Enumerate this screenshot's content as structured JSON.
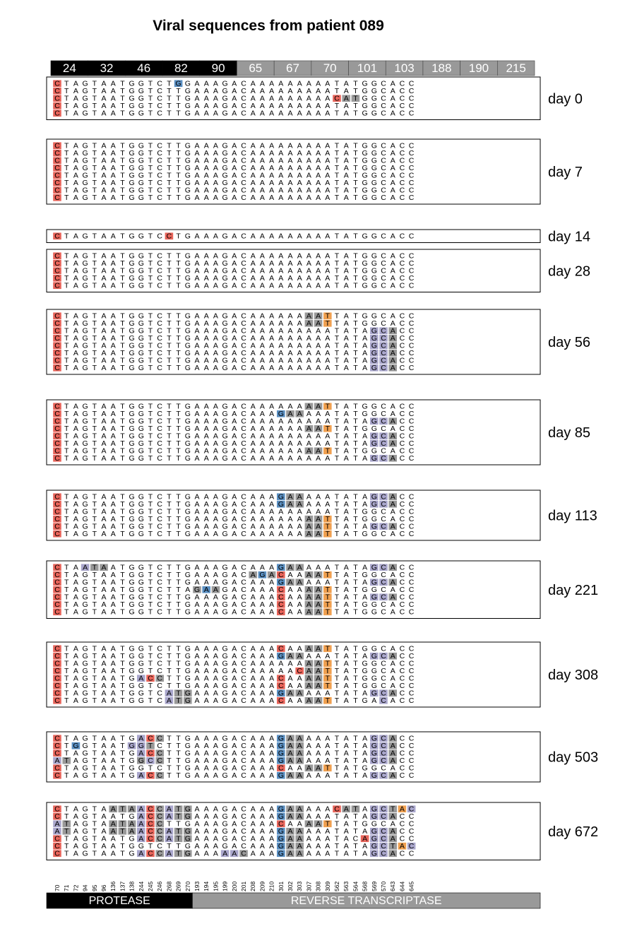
{
  "title": "Viral sequences from patient 089",
  "codon_headers": [
    "24",
    "32",
    "46",
    "82",
    "90",
    "65",
    "67",
    "70",
    "101",
    "103",
    "188",
    "190",
    "215"
  ],
  "codon_gene": [
    "P",
    "P",
    "P",
    "P",
    "P",
    "RT",
    "RT",
    "RT",
    "RT",
    "RT",
    "RT",
    "RT",
    "RT"
  ],
  "positions": [
    "70",
    "71",
    "72",
    "94",
    "95",
    "96",
    "136",
    "137",
    "138",
    "244",
    "245",
    "246",
    "268",
    "269",
    "270",
    "193",
    "194",
    "195",
    "199",
    "200",
    "201",
    "208",
    "209",
    "210",
    "301",
    "302",
    "303",
    "307",
    "308",
    "309",
    "562",
    "563",
    "564",
    "568",
    "569",
    "570",
    "643",
    "644",
    "645"
  ],
  "reference": "CTAGTAATGGTCTTGAAAGACAAAAAAAAATATGGCACC",
  "genes": [
    {
      "label": "PROTEASE",
      "color": "#000000"
    },
    {
      "label": "REVERSE TRANSCRIPTASE",
      "color": "#999999"
    }
  ],
  "colors": {
    "red": "#e8645a",
    "blue": "#5a8fc2",
    "gray": "#999999",
    "purple": "#a9a6cc",
    "orange": "#f0a050",
    "header_protease": "#000000",
    "header_rt": "#999999"
  },
  "legend_codes": {
    "r": "red",
    "b": "blue",
    "g": "gray",
    "p": "purple",
    "o": "orange"
  },
  "groups": [
    {
      "day": "day 0",
      "rows": [
        {
          "seq": "CTAGTAATGGTCTGGAAAGACAAAAAAAAATATGGCACC",
          "hl": "r............b........................."
        },
        {
          "seq": "CTAGTAATGGTCTTGAAAGACAAAAAAAAATATGGCACC",
          "hl": "r......................................"
        },
        {
          "seq": "CTAGTAATGGTCTTGAAAGACAAAAAAAAACATGGCACC",
          "hl": "r.............................rgg......"
        },
        {
          "seq": "CTAGTAATGGTCTTGAAAGACAAAAAAAAATATGGCACC",
          "hl": "r......................................"
        },
        {
          "seq": "CTAGTAATGGTCTTGAAAGACAAAAAAAAATATGGCACC",
          "hl": "r......................................"
        }
      ]
    },
    {
      "day": "day 7",
      "rows": [
        {
          "seq": "CTAGTAATGGTCTTGAAAGACAAAAAAAAATATGGCACC",
          "hl": "r......................................"
        },
        {
          "seq": "CTAGTAATGGTCTTGAAAGACAAAAAAAAATATGGCACC",
          "hl": "r......................................"
        },
        {
          "seq": "CTAGTAATGGTCTTGAAAGACAAAAAAAAATATGGCACC",
          "hl": "r......................................"
        },
        {
          "seq": "CTAGTAATGGTCTTGAAAGACAAAAAAAAATATGGCACC",
          "hl": "r......................................"
        },
        {
          "seq": "CTAGTAATGGTCTTGAAAGACAAAAAAAAATATGGCACC",
          "hl": "r......................................"
        },
        {
          "seq": "CTAGTAATGGTCTTGAAAGACAAAAAAAAATATGGCACC",
          "hl": "r......................................"
        },
        {
          "seq": "CTAGTAATGGTCTTGAAAGACAAAAAAAAATATGGCACC",
          "hl": "r......................................"
        },
        {
          "seq": "CTAGTAATGGTCTTGAAAGACAAAAAAAAATATGGCACC",
          "hl": "r......................................"
        }
      ]
    },
    {
      "day": "day 14",
      "rows": [
        {
          "seq": "CTAGTAATGGTCCTGAAAGACAAAAAAAAATATGGCACC",
          "hl": "r...........r.........................."
        }
      ]
    },
    {
      "day": "day 28",
      "rows": [
        {
          "seq": "CTAGTAATGGTCTTGAAAGACAAAAAAAAATATGGCACC",
          "hl": "r......................................"
        },
        {
          "seq": "CTAGTAATGGTCTTGAAAGACAAAAAAAAATATGGCACC",
          "hl": "r......................................"
        },
        {
          "seq": "CTAGTAATGGTCTTGAAAGACAAAAAAAAATATGGCACC",
          "hl": "r......................................"
        },
        {
          "seq": "CTAGTAATGGTCTTGAAAGACAAAAAAAAATATGGCACC",
          "hl": "r......................................"
        },
        {
          "seq": "CTAGTAATGGTCTTGAAAGACAAAAAAAAATATGGCACC",
          "hl": "r......................................"
        }
      ]
    },
    {
      "day": "day 56",
      "rows": [
        {
          "seq": "CTAGTAATGGTCTTGAAAGACAAAAAAAATTATGGCACC",
          "hl": "r..........................ggo........."
        },
        {
          "seq": "CTAGTAATGGTCTTGAAAGACAAAAAAAATTATGGCACC",
          "hl": "r..........................ggo........."
        },
        {
          "seq": "CTAGTAATGGTCTTGAAAGACAAAAAAAAATATAGCACC",
          "hl": "r.................................ppg..."
        },
        {
          "seq": "CTAGTAATGGTCTTGAAAGACAAAAAAAAATATAGCACC",
          "hl": "r.................................ppg..."
        },
        {
          "seq": "CTAGTAATGGTCTTGAAAGACAAAAAAAAATATAGCACC",
          "hl": "r.................................ppg..."
        },
        {
          "seq": "CTAGTAATGGTCTTGAAAGACAAAAAAAAATATAGCACC",
          "hl": "r.................................ppg..."
        },
        {
          "seq": "CTAGTAATGGTCTTGAAAGACAAAAAAAAATATAGCACC",
          "hl": "r.................................ppg..."
        },
        {
          "seq": "CTAGTAATGGTCTTGAAAGACAAAAAAAAATATAGCACC",
          "hl": "r.................................ppg..."
        }
      ]
    },
    {
      "day": "day 85",
      "rows": [
        {
          "seq": "CTAGTAATGGTCTTGAAAGACAAAAAAAATTATGGCACC",
          "hl": "r..........................ggo........."
        },
        {
          "seq": "CTAGTAATGGTCTTGAAAGACAAAGAAAAATATGGCACC",
          "hl": "r.......................bgg............"
        },
        {
          "seq": "CTAGTAATGGTCTTGAAAGACAAAAAAAAATATAGCACC",
          "hl": "r.................................ppg..."
        },
        {
          "seq": "CTAGTAATGGTCTTGAAAGACAAAAAAAATTATGGCACC",
          "hl": "r..........................ggo........."
        },
        {
          "seq": "CTAGTAATGGTCTTGAAAGACAAAAAAAAATATAGCACC",
          "hl": "r.................................ppg..."
        },
        {
          "seq": "CTAGTAATGGTCTTGAAAGACAAAAAAAAATATAGCACC",
          "hl": "r.................................ppg..."
        },
        {
          "seq": "CTAGTAATGGTCTTGAAAGACAAAAAAAATTATGGCACC",
          "hl": "r..........................ggo........."
        },
        {
          "seq": "CTAGTAATGGTCTTGAAAGACAAAAAAAAATATAGCACC",
          "hl": "r.................................ppg..."
        }
      ]
    },
    {
      "day": "day 113",
      "rows": [
        {
          "seq": "CTAGTAATGGTCTTGAAAGACAAAGAAAAATATAGCACC",
          "hl": "r.......................bgg.......ppg..."
        },
        {
          "seq": "CTAGTAATGGTCTTGAAAGACAAAGAAAAATATAGCACC",
          "hl": "r.......................bgg.......ppg..."
        },
        {
          "seq": "CTAGTAATGGTCTTGAAAGACAAAAAAAAATATGGCACC",
          "hl": "r......................................"
        },
        {
          "seq": "CTAGTAATGGTCTTGAAAGACAAAAAAAATTATGGCACC",
          "hl": "r..........................ggo........."
        },
        {
          "seq": "CTAGTAATGGTCTTGAAAGACAAAAAAAATTATAGCACC",
          "hl": "r..........................ggo....ppg..."
        },
        {
          "seq": "CTAGTAATGGTCTTGAAAGACAAAAAAAATTATGGCACC",
          "hl": "r..........................ggo........."
        }
      ]
    },
    {
      "day": "day 221",
      "rows": [
        {
          "seq": "CTAATAATGGTCTTGAAAGACAAAGAAAAATATAGCACC",
          "hl": "r..pgg..................bgg.......ppg..."
        },
        {
          "seq": "CTAGTAATGGTCTTGAAAGACAGACAAAATTATGGCACC",
          "hl": "r....................gbgr..ggo........."
        },
        {
          "seq": "CTAGTAATGGTCTTGAAAGACAAAGAAAAATATAGCACC",
          "hl": "r.......................bgg.......ppg..."
        },
        {
          "seq": "CTAGTAATGGTCTTAGAAGACAAACAAAATTATGGCACC",
          "hl": "r..............gbg......r..ggo........."
        },
        {
          "seq": "CTAGTAATGGTCTTGAAAGACAAACAAAATTATAGCACC",
          "hl": "r.......................r..ggo....ppg..."
        },
        {
          "seq": "CTAGTAATGGTCTTGAAAGACAAACAAAATTATGGCACC",
          "hl": "r.......................r..ggo........."
        },
        {
          "seq": "CTAGTAATGGTCTTGAAAGACAAACAAAATTATGGCACC",
          "hl": "r.......................r..ggo........."
        }
      ]
    },
    {
      "day": "day 308",
      "rows": [
        {
          "seq": "CTAGTAATGGTCTTGAAAGACAAACAAAATTATGGCACC",
          "hl": "r.......................r..ggo........."
        },
        {
          "seq": "CTAGTAATGGTCTTGAAAGACAAAGAAAAATATAGCACC",
          "hl": "r.......................bgg.......ppg..."
        },
        {
          "seq": "CTAGTAATGGTCTTGAAAGACAAAAAAAATTATGGCACC",
          "hl": "r..........................ggo........."
        },
        {
          "seq": "CTAGTAATGGTCTTGAAAGACAAAAACAATTATGGCACC",
          "hl": "r.........................rggo........."
        },
        {
          "seq": "CTAGTAATGACCTTGAAAGACAAACAAAATTATGGCACC",
          "hl": "r........prg............r..ggo........."
        },
        {
          "seq": "CTAGTAATGGTCTTGAAAGACAAACAAAATTATGGCACC",
          "hl": "r.......................r..ggo........."
        },
        {
          "seq": "CTAGTAATGGTCATGAAAGACAAAGAAAAATATAGCACC",
          "hl": "r...........pgg.........bgg.......ppg..."
        },
        {
          "seq": "CTAGTAATGGTCATGAAAGACAAACAAAATTATGACACC",
          "hl": "r...........pgg.........r..ggo.....p...."
        }
      ]
    },
    {
      "day": "day 503",
      "rows": [
        {
          "seq": "CTAGTAATGACCTTGAAAGACAAAGAAAAATATAGCACC",
          "hl": "r........prg............bgg.......ppg..."
        },
        {
          "seq": "CTGGTAATGGTCTTGAAAGACAAAGAAAAATATAGCACC",
          "hl": "r.b.....ppg.............bgg.......ppg..."
        },
        {
          "seq": "CTAGTAATGACCTTGAAAGACAAAGAAAAATATAGCACC",
          "hl": "r........prg............bgg.......ppg..."
        },
        {
          "seq": "ATAGTAATGGCCTTGAAAGACAAAGAAAAATATAGCACC",
          "hl": "pg.......gpg............bgg.......ppg..."
        },
        {
          "seq": "CTAGTAATGGTCTTGAAAGACAAACAAAATTATGGCACC",
          "hl": "r.......................r..ggo........."
        },
        {
          "seq": "CTAGTAATGACCTTGAAAGACAAAGAAAAATATAGCACC",
          "hl": "r........prg............bgg.......ppg..."
        }
      ]
    },
    {
      "day": "day 672",
      "rows": [
        {
          "seq": "CTAGTAATAACCATGAAAGACAAAGAAAAACATAGCTAC",
          "hl": "r.....gggprgpgg.........bgg...rgg.ppgopp"
        },
        {
          "seq": "CTAGTAATGACCATGAAAGACAAAGAAAAATATAGCACC",
          "hl": "r........prgpgg.........bgg.......ppg..."
        },
        {
          "seq": "ATAGTAATAACCTTGAAAGACAAACAAAATTATGGCACC",
          "hl": "pg....gggprg............r..ggo........."
        },
        {
          "seq": "ATAGTAATAACCATGAAAGACAAAGAAAAATATAGCACC",
          "hl": "pg....gggprgpgg.........bgg.......ppg..."
        },
        {
          "seq": "CTAGTAATGACCATGAAAGACAAAGAAAAATACAGCACC",
          "hl": "r........prgpgg.........bgg......rppg..."
        },
        {
          "seq": "CTAGTAATGGTCTTGAAAGACAAAGAAAAATATAGCTAC",
          "hl": "r.......................bgg.......ppgopp"
        },
        {
          "seq": "CTAGTAATGACCATGAAAAACAAAGAAAAATATAGCACC",
          "hl": "r........prgpgg...ppg...bgg.......ppg..."
        }
      ]
    }
  ]
}
